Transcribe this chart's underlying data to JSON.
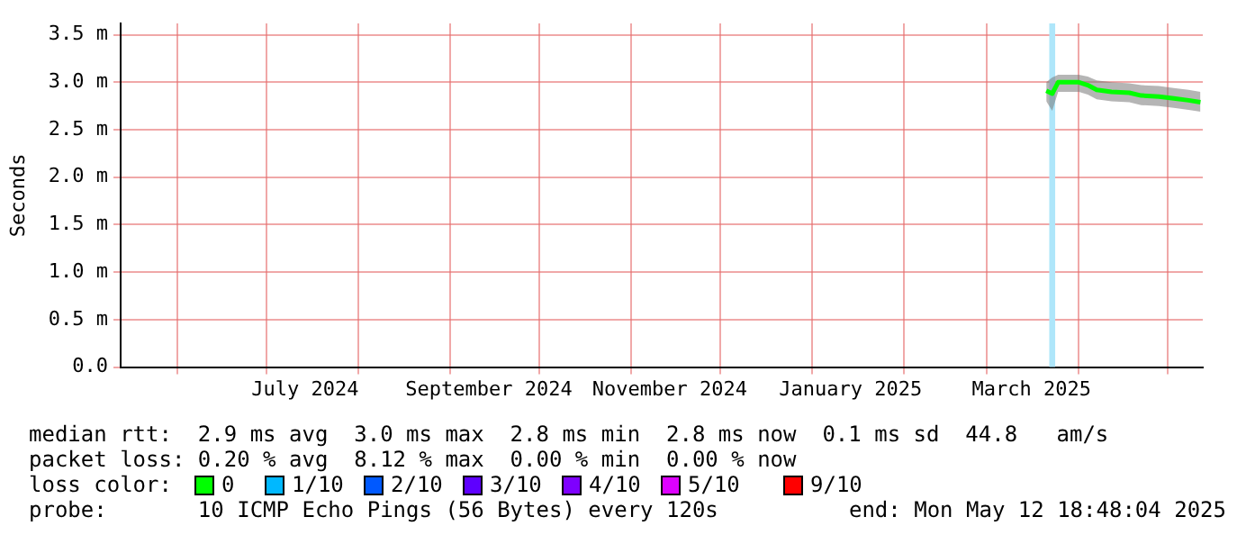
{
  "chart_data": {
    "type": "line",
    "ylabel": "Seconds",
    "x": [
      "2025-03-21",
      "2025-03-23",
      "2025-03-25",
      "2025-04-01",
      "2025-04-04",
      "2025-04-07",
      "2025-04-12",
      "2025-04-18",
      "2025-04-22",
      "2025-04-28",
      "2025-05-03",
      "2025-05-08",
      "2025-05-12"
    ],
    "series": [
      {
        "color": "#00ff00",
        "values": [
          2.91,
          2.88,
          3.0,
          3.0,
          2.97,
          2.92,
          2.9,
          2.89,
          2.86,
          2.85,
          2.83,
          2.81,
          2.79
        ],
        "lower": [
          2.8,
          2.7,
          2.9,
          2.9,
          2.87,
          2.82,
          2.8,
          2.79,
          2.76,
          2.75,
          2.73,
          2.71,
          2.69
        ],
        "upper": [
          3.0,
          3.05,
          3.08,
          3.08,
          3.06,
          3.02,
          3.0,
          2.99,
          2.97,
          2.96,
          2.94,
          2.92,
          2.9
        ]
      }
    ],
    "xlim": [
      "2024-05-12T18:48",
      "2025-05-12T18:48"
    ],
    "xticks": [
      {
        "value": "2024-06-01",
        "label": null
      },
      {
        "value": "2024-07-01",
        "label": null
      },
      {
        "value": "2024-07-14",
        "label": "July 2024"
      },
      {
        "value": "2024-08-01",
        "label": null
      },
      {
        "value": "2024-09-01",
        "label": null
      },
      {
        "value": "2024-09-14",
        "label": "September 2024"
      },
      {
        "value": "2024-10-01",
        "label": null
      },
      {
        "value": "2024-11-01",
        "label": null
      },
      {
        "value": "2024-11-14",
        "label": "November 2024"
      },
      {
        "value": "2024-12-01",
        "label": null
      },
      {
        "value": "2025-01-01",
        "label": null
      },
      {
        "value": "2025-01-14",
        "label": "January 2025"
      },
      {
        "value": "2025-02-01",
        "label": null
      },
      {
        "value": "2025-03-01",
        "label": null
      },
      {
        "value": "2025-03-16",
        "label": "March 2025"
      },
      {
        "value": "2025-04-01",
        "label": null
      },
      {
        "value": "2025-05-01",
        "label": null
      }
    ],
    "ylim": [
      0,
      3.62
    ],
    "yticks": [
      {
        "value": 0,
        "label": "0.0"
      },
      {
        "value": 0.5,
        "label": "0.5 m"
      },
      {
        "value": 1.0,
        "label": "1.0 m"
      },
      {
        "value": 1.5,
        "label": "1.5 m"
      },
      {
        "value": 2.0,
        "label": "2.0 m"
      },
      {
        "value": 2.5,
        "label": "2.5 m"
      },
      {
        "value": 3.0,
        "label": "3.0 m"
      },
      {
        "value": 3.5,
        "label": "3.5 m"
      }
    ],
    "bands": [
      {
        "axis": "x",
        "from": "2025-03-22",
        "to": "2025-03-24",
        "color": "#aee6fa"
      }
    ],
    "grid": true,
    "legend": false,
    "marker": "none",
    "line_style": "solid",
    "annotations": [
      "median rtt:  2.9 ms avg  3.0 ms max  2.8 ms min  2.8 ms now  0.1 ms sd  44.8   am/s",
      "packet loss: 0.20 % avg  8.12 % max  0.00 % min  0.00 % now",
      "loss color:",
      "0",
      "1/10",
      "2/10",
      "3/10",
      "4/10",
      "5/10",
      "9/10",
      "probe:       10 ICMP Echo Pings (56 Bytes) every 120s",
      "end: Mon May 12 18:48:04 2025"
    ]
  }
}
